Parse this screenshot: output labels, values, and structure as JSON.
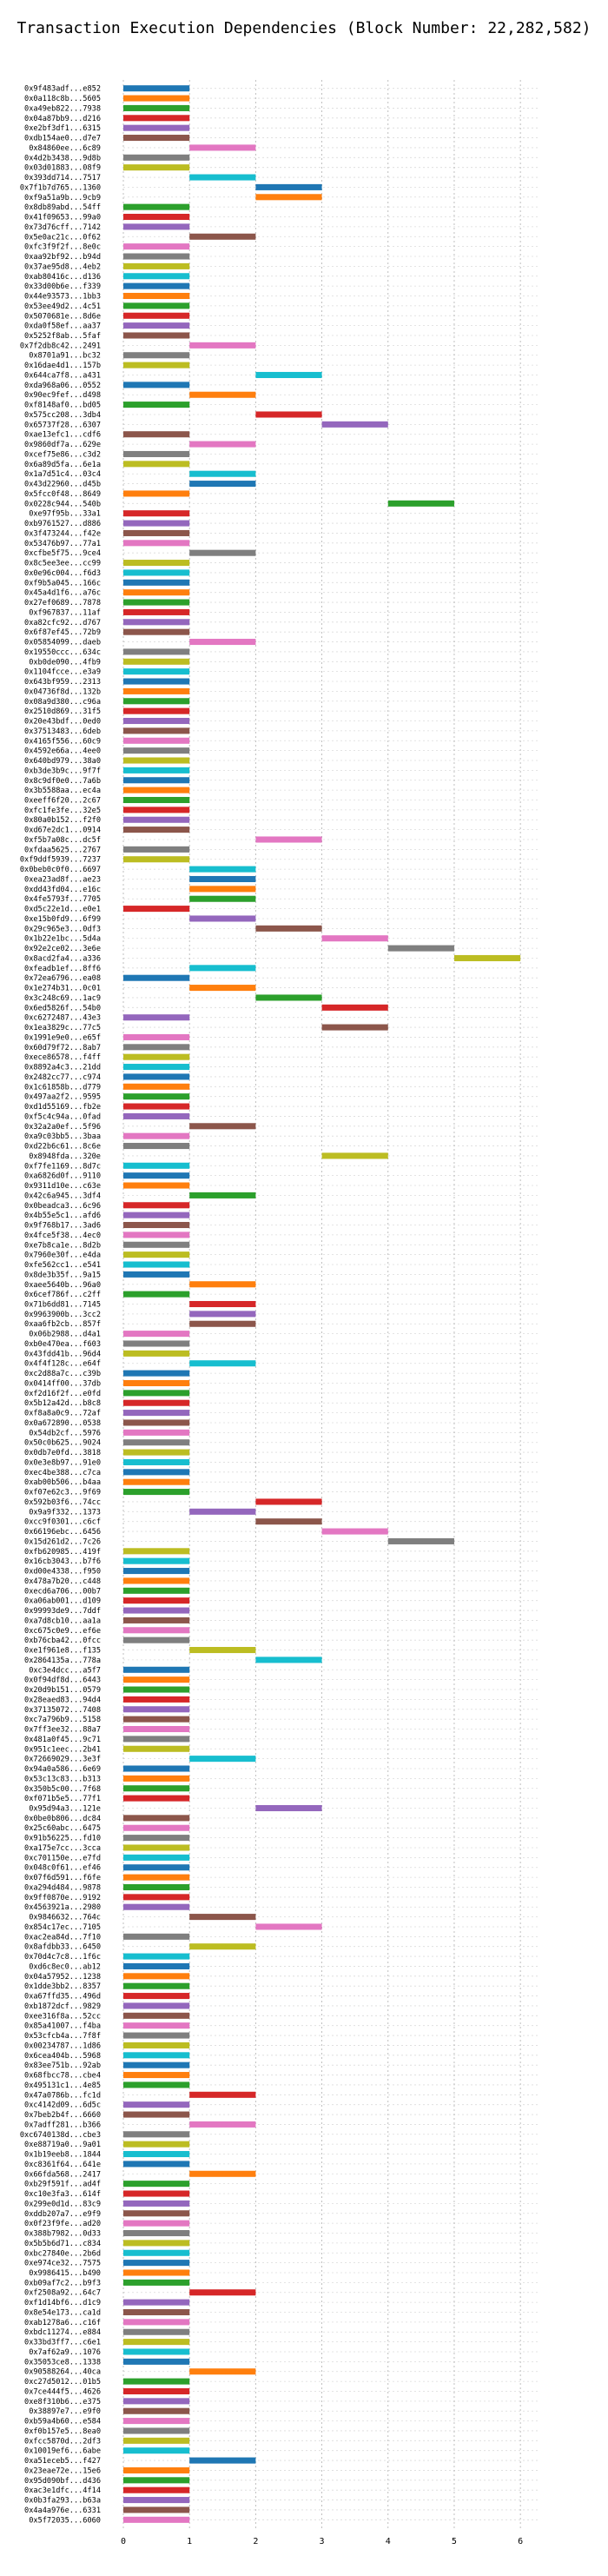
{
  "chart_data": {
    "type": "bar",
    "orientation": "horizontal-gantt",
    "title": "Transaction Execution Dependencies (Block Number: 22,282,582)",
    "xlabel": "",
    "ylabel": "",
    "xlim": [
      0,
      6.3
    ],
    "xticks": [
      0,
      1,
      2,
      3,
      4,
      5,
      6
    ],
    "grid": true,
    "legend": "none",
    "palette": [
      "#1f77b4",
      "#ff7f0e",
      "#2ca02c",
      "#d62728",
      "#9467bd",
      "#8c564b",
      "#e377c2",
      "#7f7f7f",
      "#bcbd22",
      "#17becf"
    ],
    "transactions": [
      {
        "hash": "0x9f483adf...e852",
        "start": 0
      },
      {
        "hash": "0x0a118c8b...5605",
        "start": 0
      },
      {
        "hash": "0xa49eb822...7938",
        "start": 0
      },
      {
        "hash": "0x04a87bb9...d216",
        "start": 0
      },
      {
        "hash": "0xe2bf3df1...6315",
        "start": 0
      },
      {
        "hash": "0xdb154ae0...d7e7",
        "start": 0
      },
      {
        "hash": "0x84860ee...6c89",
        "start": 1
      },
      {
        "hash": "0x4d2b3438...9d8b",
        "start": 0
      },
      {
        "hash": "0x03d01883...08f9",
        "start": 0
      },
      {
        "hash": "0x393dd714...7517",
        "start": 1
      },
      {
        "hash": "0x7f1b7d765...1360",
        "start": 2
      },
      {
        "hash": "0xf9a51a9b...9cb9",
        "start": 2
      },
      {
        "hash": "0x8db89abd...54ff",
        "start": 0
      },
      {
        "hash": "0x41f09653...99a0",
        "start": 0
      },
      {
        "hash": "0x73d76cff...7142",
        "start": 0
      },
      {
        "hash": "0x5e0ac21c...0f62",
        "start": 1
      },
      {
        "hash": "0xfc3f9f2f...8e0c",
        "start": 0
      },
      {
        "hash": "0xaa92bf92...b94d",
        "start": 0
      },
      {
        "hash": "0x37ae95d8...4eb2",
        "start": 0
      },
      {
        "hash": "0xab80416c...d136",
        "start": 0
      },
      {
        "hash": "0x33d00b6e...f339",
        "start": 0
      },
      {
        "hash": "0x44e93573...1bb3",
        "start": 0
      },
      {
        "hash": "0x53ee49d2...4c51",
        "start": 0
      },
      {
        "hash": "0x5070681e...8d6e",
        "start": 0
      },
      {
        "hash": "0xda0f58ef...aa37",
        "start": 0
      },
      {
        "hash": "0x5252f8ab...5faf",
        "start": 0
      },
      {
        "hash": "0x7f2db8c42...2491",
        "start": 1
      },
      {
        "hash": "0x8701a91...bc32",
        "start": 0
      },
      {
        "hash": "0x16dae4d1...157b",
        "start": 0
      },
      {
        "hash": "0x644ca7f8...a431",
        "start": 2
      },
      {
        "hash": "0xda968a06...0552",
        "start": 0
      },
      {
        "hash": "0x90ec9fef...d498",
        "start": 1
      },
      {
        "hash": "0xf8148af0...bd05",
        "start": 0
      },
      {
        "hash": "0x575cc208...3db4",
        "start": 2
      },
      {
        "hash": "0x65737f28...6307",
        "start": 3
      },
      {
        "hash": "0xae13efc1...cdf6",
        "start": 0
      },
      {
        "hash": "0x9860df7a...629e",
        "start": 1
      },
      {
        "hash": "0xcef75e86...c3d2",
        "start": 0
      },
      {
        "hash": "0x6a89d5fa...6e1a",
        "start": 0
      },
      {
        "hash": "0x1a7d51c4...03c4",
        "start": 1
      },
      {
        "hash": "0x43d22960...d45b",
        "start": 1
      },
      {
        "hash": "0x5fcc0f48...8649",
        "start": 0
      },
      {
        "hash": "0x0228c944...540b",
        "start": 4
      },
      {
        "hash": "0xe97f95b...33a1",
        "start": 0
      },
      {
        "hash": "0xb9761527...d886",
        "start": 0
      },
      {
        "hash": "0x3f473244...f42e",
        "start": 0
      },
      {
        "hash": "0x53476b97...77a1",
        "start": 0
      },
      {
        "hash": "0xcfbe5f75...9ce4",
        "start": 1
      },
      {
        "hash": "0x8c5ee3ee...cc99",
        "start": 0
      },
      {
        "hash": "0x0e96c004...f6d3",
        "start": 0
      },
      {
        "hash": "0xf9b5a045...166c",
        "start": 0
      },
      {
        "hash": "0x45a4d1f6...a76c",
        "start": 0
      },
      {
        "hash": "0x27ef0689...7878",
        "start": 0
      },
      {
        "hash": "0xf967837...11af",
        "start": 0
      },
      {
        "hash": "0xa82cfc92...d767",
        "start": 0
      },
      {
        "hash": "0x6f87ef45...72b9",
        "start": 0
      },
      {
        "hash": "0x05854099...daeb",
        "start": 1
      },
      {
        "hash": "0x19550ccc...634c",
        "start": 0
      },
      {
        "hash": "0xb0de090...4fb9",
        "start": 0
      },
      {
        "hash": "0x1104fcce...e3a9",
        "start": 0
      },
      {
        "hash": "0x643bf959...2313",
        "start": 0
      },
      {
        "hash": "0x04736f8d...132b",
        "start": 0
      },
      {
        "hash": "0x08a9d380...c96a",
        "start": 0
      },
      {
        "hash": "0x2510d869...31f5",
        "start": 0
      },
      {
        "hash": "0x20e43bdf...0ed0",
        "start": 0
      },
      {
        "hash": "0x37513483...6deb",
        "start": 0
      },
      {
        "hash": "0x4165f556...60c9",
        "start": 0
      },
      {
        "hash": "0x4592e66a...4ee0",
        "start": 0
      },
      {
        "hash": "0x640bd979...38a0",
        "start": 0
      },
      {
        "hash": "0xb3de3b9c...9f7f",
        "start": 0
      },
      {
        "hash": "0x8c9df0e0...7a6b",
        "start": 0
      },
      {
        "hash": "0x3b5588aa...ec4a",
        "start": 0
      },
      {
        "hash": "0xeeff6f20...2c67",
        "start": 0
      },
      {
        "hash": "0xfc1fe3fe...32e5",
        "start": 0
      },
      {
        "hash": "0x80a0b152...f2f0",
        "start": 0
      },
      {
        "hash": "0xd67e2dc1...0914",
        "start": 0
      },
      {
        "hash": "0xf5b7a08c...dc5f",
        "start": 2
      },
      {
        "hash": "0xfdaa5625...2767",
        "start": 0
      },
      {
        "hash": "0xf9ddf5939...7237",
        "start": 0
      },
      {
        "hash": "0x0beb0c0f0...6697",
        "start": 1
      },
      {
        "hash": "0xea23ad8f...ae23",
        "start": 1
      },
      {
        "hash": "0xdd43fd04...e16c",
        "start": 1
      },
      {
        "hash": "0x4fe5793f...7705",
        "start": 1
      },
      {
        "hash": "0xd5c22e1d...e0e1",
        "start": 0
      },
      {
        "hash": "0xe15b0fd9...6f99",
        "start": 1
      },
      {
        "hash": "0x29c965e3...0df3",
        "start": 2
      },
      {
        "hash": "0x1b22e1bc...5d4a",
        "start": 3
      },
      {
        "hash": "0x92e2ce02...3e6e",
        "start": 4
      },
      {
        "hash": "0x8acd2fa4...a336",
        "start": 5
      },
      {
        "hash": "0xfeadb1ef...8ff6",
        "start": 1
      },
      {
        "hash": "0x72ea6796...ea08",
        "start": 0
      },
      {
        "hash": "0x1e274b31...0c01",
        "start": 1
      },
      {
        "hash": "0x3c248c69...1ac9",
        "start": 2
      },
      {
        "hash": "0x6ed5826f...54b0",
        "start": 3
      },
      {
        "hash": "0xc6272487...43e3",
        "start": 0
      },
      {
        "hash": "0x1ea3829c...77c5",
        "start": 3
      },
      {
        "hash": "0x1991e9e0...e65f",
        "start": 0
      },
      {
        "hash": "0x60d79f72...8ab7",
        "start": 0
      },
      {
        "hash": "0xece86578...f4ff",
        "start": 0
      },
      {
        "hash": "0x8892a4c3...21dd",
        "start": 0
      },
      {
        "hash": "0x2482cc77...c974",
        "start": 0
      },
      {
        "hash": "0x1c61858b...d779",
        "start": 0
      },
      {
        "hash": "0x497aa2f2...9595",
        "start": 0
      },
      {
        "hash": "0xd1d55169...fb2e",
        "start": 0
      },
      {
        "hash": "0xf5c4c94a...0fad",
        "start": 0
      },
      {
        "hash": "0x32a2a0ef...5f96",
        "start": 1
      },
      {
        "hash": "0xa9c03bb5...3baa",
        "start": 0
      },
      {
        "hash": "0xd22b6c61...8c6e",
        "start": 0
      },
      {
        "hash": "0x8948fda...320e",
        "start": 3
      },
      {
        "hash": "0xf7fe1169...8d7c",
        "start": 0
      },
      {
        "hash": "0xa6826d0f...9110",
        "start": 0
      },
      {
        "hash": "0x9311d10e...c63e",
        "start": 0
      },
      {
        "hash": "0x42c6a945...3df4",
        "start": 1
      },
      {
        "hash": "0x0beadca3...6c96",
        "start": 0
      },
      {
        "hash": "0x4b55e5c1...afd6",
        "start": 0
      },
      {
        "hash": "0x9f768b17...3ad6",
        "start": 0
      },
      {
        "hash": "0x4fce5f38...4ec0",
        "start": 0
      },
      {
        "hash": "0xe7b8ca1e...8d2b",
        "start": 0
      },
      {
        "hash": "0x7960e30f...e4da",
        "start": 0
      },
      {
        "hash": "0xfe562cc1...e541",
        "start": 0
      },
      {
        "hash": "0x8de3b35f...9a15",
        "start": 0
      },
      {
        "hash": "0xaee5640b...96a0",
        "start": 1
      },
      {
        "hash": "0x6cef786f...c2ff",
        "start": 0
      },
      {
        "hash": "0x71b6dd81...7145",
        "start": 1
      },
      {
        "hash": "0x9963900b...3cc2",
        "start": 1
      },
      {
        "hash": "0xaa6fb2cb...857f",
        "start": 1
      },
      {
        "hash": "0x06b2988...d4a1",
        "start": 0
      },
      {
        "hash": "0xb0e470ea...f603",
        "start": 0
      },
      {
        "hash": "0x43fdd41b...96d4",
        "start": 0
      },
      {
        "hash": "0x4f4f128c...e64f",
        "start": 1
      },
      {
        "hash": "0xc2d88a7c...c39b",
        "start": 0
      },
      {
        "hash": "0x0414ff00...37db",
        "start": 0
      },
      {
        "hash": "0xf2d16f2f...e0fd",
        "start": 0
      },
      {
        "hash": "0x5b12a42d...b8c8",
        "start": 0
      },
      {
        "hash": "0xf8a8a0c9...72af",
        "start": 0
      },
      {
        "hash": "0x0a672890...0538",
        "start": 0
      },
      {
        "hash": "0x54db2cf...5976",
        "start": 0
      },
      {
        "hash": "0x50c0b625...9024",
        "start": 0
      },
      {
        "hash": "0x0db7e0fd...3818",
        "start": 0
      },
      {
        "hash": "0x0e3e8b97...91e0",
        "start": 0
      },
      {
        "hash": "0xec4be388...c7ca",
        "start": 0
      },
      {
        "hash": "0xab00b506...b4aa",
        "start": 0
      },
      {
        "hash": "0xf07e62c3...9f69",
        "start": 0
      },
      {
        "hash": "0x592b03f6...74cc",
        "start": 2
      },
      {
        "hash": "0x9a9f332...1373",
        "start": 1
      },
      {
        "hash": "0xcc9f0301...c6cf",
        "start": 2
      },
      {
        "hash": "0x66196ebc...6456",
        "start": 3
      },
      {
        "hash": "0x15d261d2...7c26",
        "start": 4
      },
      {
        "hash": "0xfb620985...419f",
        "start": 0
      },
      {
        "hash": "0x16cb3043...b7f6",
        "start": 0
      },
      {
        "hash": "0xd00e4338...f950",
        "start": 0
      },
      {
        "hash": "0x478a7b20...c448",
        "start": 0
      },
      {
        "hash": "0xecd6a706...00b7",
        "start": 0
      },
      {
        "hash": "0xa06ab001...d109",
        "start": 0
      },
      {
        "hash": "0x99993de9...7ddf",
        "start": 0
      },
      {
        "hash": "0xa7d8cb10...aa1a",
        "start": 0
      },
      {
        "hash": "0xc675c0e9...ef6e",
        "start": 0
      },
      {
        "hash": "0xb76cba42...0fcc",
        "start": 0
      },
      {
        "hash": "0xe1f961e8...f135",
        "start": 1
      },
      {
        "hash": "0x2864135a...778a",
        "start": 2
      },
      {
        "hash": "0xc3e4dcc...a5f7",
        "start": 0
      },
      {
        "hash": "0x0f94df8d...6443",
        "start": 0
      },
      {
        "hash": "0x20d9b151...0579",
        "start": 0
      },
      {
        "hash": "0x28eaed83...94d4",
        "start": 0
      },
      {
        "hash": "0x37135072...7408",
        "start": 0
      },
      {
        "hash": "0xc7a796b9...5158",
        "start": 0
      },
      {
        "hash": "0x7ff3ee32...88a7",
        "start": 0
      },
      {
        "hash": "0x481a0f45...9c71",
        "start": 0
      },
      {
        "hash": "0x951c1eec...2b41",
        "start": 0
      },
      {
        "hash": "0x72669029...3e3f",
        "start": 1
      },
      {
        "hash": "0x94a0a586...6e69",
        "start": 0
      },
      {
        "hash": "0x53c13c83...b313",
        "start": 0
      },
      {
        "hash": "0x350b5c00...7f68",
        "start": 0
      },
      {
        "hash": "0xf071b5e5...77f1",
        "start": 0
      },
      {
        "hash": "0x95d94a3...121e",
        "start": 2
      },
      {
        "hash": "0x0be0b806...dc84",
        "start": 0
      },
      {
        "hash": "0x25c60abc...6475",
        "start": 0
      },
      {
        "hash": "0x91b56225...fd10",
        "start": 0
      },
      {
        "hash": "0xa175e7cc...3cca",
        "start": 0
      },
      {
        "hash": "0xc701150e...e7fd",
        "start": 0
      },
      {
        "hash": "0x048c0f61...ef46",
        "start": 0
      },
      {
        "hash": "0x07f6d591...f6fe",
        "start": 0
      },
      {
        "hash": "0xa294d484...9878",
        "start": 0
      },
      {
        "hash": "0x9ff0870e...9192",
        "start": 0
      },
      {
        "hash": "0x4563921a...2980",
        "start": 0
      },
      {
        "hash": "0x9846632...764c",
        "start": 1
      },
      {
        "hash": "0x854c17ec...7105",
        "start": 2
      },
      {
        "hash": "0xac2ea84d...7f10",
        "start": 0
      },
      {
        "hash": "0x8afdbb33...6450",
        "start": 1
      },
      {
        "hash": "0x70d4c7c8...1f6c",
        "start": 0
      },
      {
        "hash": "0xd6c8ec0...ab12",
        "start": 0
      },
      {
        "hash": "0x04a57952...1238",
        "start": 0
      },
      {
        "hash": "0x1dde3bb2...8357",
        "start": 0
      },
      {
        "hash": "0xa67ffd35...496d",
        "start": 0
      },
      {
        "hash": "0xb1872dcf...9829",
        "start": 0
      },
      {
        "hash": "0xee316f8a...52cc",
        "start": 0
      },
      {
        "hash": "0x85a41007...f4ba",
        "start": 0
      },
      {
        "hash": "0x53cfcb4a...7f8f",
        "start": 0
      },
      {
        "hash": "0x00234787...1d86",
        "start": 0
      },
      {
        "hash": "0x6cea404b...5968",
        "start": 0
      },
      {
        "hash": "0x83ee751b...92ab",
        "start": 0
      },
      {
        "hash": "0x68fbcc78...cbe4",
        "start": 0
      },
      {
        "hash": "0x495131c1...4e85",
        "start": 0
      },
      {
        "hash": "0x47a0786b...fc1d",
        "start": 1
      },
      {
        "hash": "0xc4142d09...6d5c",
        "start": 0
      },
      {
        "hash": "0x7beb2b4f...6660",
        "start": 0
      },
      {
        "hash": "0x7adff281...b366",
        "start": 1
      },
      {
        "hash": "0xc6740138d...cbe3",
        "start": 0
      },
      {
        "hash": "0xe88719a0...9a01",
        "start": 0
      },
      {
        "hash": "0x1b19eeb8...1844",
        "start": 0
      },
      {
        "hash": "0xc8361f64...641e",
        "start": 0
      },
      {
        "hash": "0x66fda568...2417",
        "start": 1
      },
      {
        "hash": "0xb29f591f...ad4f",
        "start": 0
      },
      {
        "hash": "0xc10e3fa3...614f",
        "start": 0
      },
      {
        "hash": "0x299e0d1d...83c9",
        "start": 0
      },
      {
        "hash": "0xddb207a7...e9f9",
        "start": 0
      },
      {
        "hash": "0x0f23f9fe...ad20",
        "start": 0
      },
      {
        "hash": "0x388b7982...0d33",
        "start": 0
      },
      {
        "hash": "0x5b5b6d71...c834",
        "start": 0
      },
      {
        "hash": "0xbc27840e...2b6d",
        "start": 0
      },
      {
        "hash": "0xe974ce32...7575",
        "start": 0
      },
      {
        "hash": "0x9986415...b490",
        "start": 0
      },
      {
        "hash": "0xb09af7c2...b9f3",
        "start": 0
      },
      {
        "hash": "0xf2508a92...64c7",
        "start": 1
      },
      {
        "hash": "0xf1d14bf6...d1c9",
        "start": 0
      },
      {
        "hash": "0x8e54e173...ca1d",
        "start": 0
      },
      {
        "hash": "0xab1278a6...c16f",
        "start": 0
      },
      {
        "hash": "0xbdc11274...e884",
        "start": 0
      },
      {
        "hash": "0x33bd3ff7...c6e1",
        "start": 0
      },
      {
        "hash": "0x7af62a9...1076",
        "start": 0
      },
      {
        "hash": "0x35053ce8...1338",
        "start": 0
      },
      {
        "hash": "0x90588264...40ca",
        "start": 1
      },
      {
        "hash": "0xc27d5012...01b5",
        "start": 0
      },
      {
        "hash": "0x7ce444f5...4626",
        "start": 0
      },
      {
        "hash": "0xe8f310b6...e375",
        "start": 0
      },
      {
        "hash": "0x38897e7...e9f0",
        "start": 0
      },
      {
        "hash": "0xb59a4b60...e584",
        "start": 0
      },
      {
        "hash": "0xf0b157e5...8ea0",
        "start": 0
      },
      {
        "hash": "0xfcc5870d...2df3",
        "start": 0
      },
      {
        "hash": "0x10019ef6...6abe",
        "start": 0
      },
      {
        "hash": "0xa51eceb5...f427",
        "start": 1
      },
      {
        "hash": "0x23eae72e...15e6",
        "start": 0
      },
      {
        "hash": "0x95d090bf...d436",
        "start": 0
      },
      {
        "hash": "0xac3e1dfc...4f14",
        "start": 0
      },
      {
        "hash": "0x0b3fa293...b63a",
        "start": 0
      },
      {
        "hash": "0x4a4a976e...6331",
        "start": 0
      },
      {
        "hash": "0x5f72035...6060",
        "start": 0
      }
    ]
  }
}
